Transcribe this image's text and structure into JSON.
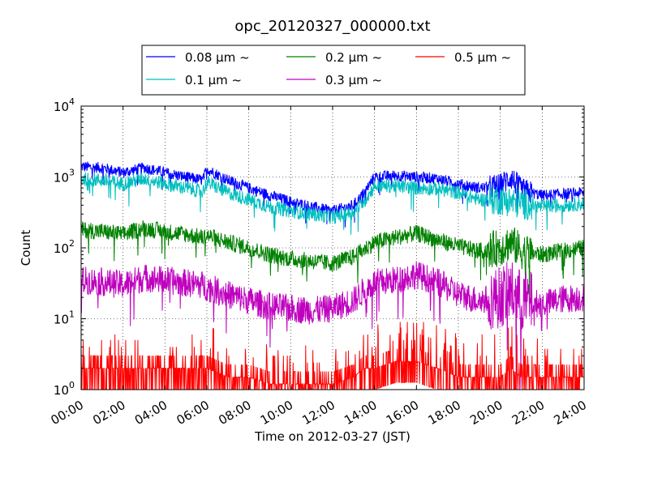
{
  "chart_data": {
    "type": "line",
    "title": "opc_20120327_000000.txt",
    "xlabel": "Time on 2012-03-27 (JST)",
    "ylabel": "Count",
    "yscale": "log",
    "ylim": [
      1,
      10000
    ],
    "xlim": [
      "00:00",
      "24:00"
    ],
    "grid": true,
    "legend_position": "top-center",
    "x_ticks": [
      "00:00",
      "02:00",
      "04:00",
      "06:00",
      "08:00",
      "10:00",
      "12:00",
      "14:00",
      "16:00",
      "18:00",
      "20:00",
      "22:00",
      "24:00"
    ],
    "y_ticks": [
      {
        "base": "10",
        "exp": "0"
      },
      {
        "base": "10",
        "exp": "1"
      },
      {
        "base": "10",
        "exp": "2"
      },
      {
        "base": "10",
        "exp": "3"
      },
      {
        "base": "10",
        "exp": "4"
      }
    ],
    "x_hours": [
      0,
      1,
      2,
      3,
      4,
      5,
      5.8,
      6,
      7,
      8,
      9,
      10,
      11,
      12,
      13,
      13.5,
      14,
      15,
      16,
      17,
      18,
      19,
      20,
      20.5,
      21,
      22,
      23,
      24
    ],
    "series": [
      {
        "name": "0.08 μm ~",
        "color": "#0000ff",
        "values": [
          1400,
          1350,
          1150,
          1350,
          1150,
          1000,
          900,
          1300,
          900,
          700,
          550,
          450,
          380,
          330,
          400,
          600,
          1000,
          1050,
          1000,
          950,
          800,
          700,
          750,
          1000,
          650,
          550,
          580,
          600
        ]
      },
      {
        "name": "0.1 μm ~",
        "color": "#00bfbf",
        "values": [
          950,
          900,
          800,
          950,
          800,
          700,
          620,
          850,
          600,
          480,
          380,
          330,
          300,
          270,
          320,
          450,
          750,
          750,
          700,
          680,
          600,
          480,
          480,
          450,
          420,
          380,
          400,
          420
        ]
      },
      {
        "name": "0.2 μm ~",
        "color": "#008000",
        "values": [
          180,
          170,
          155,
          190,
          170,
          155,
          140,
          150,
          120,
          100,
          80,
          70,
          65,
          60,
          75,
          95,
          120,
          140,
          160,
          130,
          105,
          90,
          100,
          120,
          90,
          80,
          90,
          100
        ]
      },
      {
        "name": "0.3 μm ~",
        "color": "#bf00bf",
        "values": [
          35,
          33,
          30,
          38,
          35,
          32,
          30,
          28,
          22,
          18,
          15,
          14,
          13,
          14,
          18,
          25,
          32,
          35,
          42,
          33,
          22,
          18,
          20,
          25,
          18,
          16,
          19,
          20
        ]
      },
      {
        "name": "0.5 μm ~",
        "color": "#ff0000",
        "values": [
          2,
          2,
          2,
          2,
          2,
          2,
          2,
          2,
          1.5,
          1.5,
          1.2,
          1.2,
          1.2,
          1.2,
          1.5,
          2,
          2,
          2.5,
          2.5,
          2,
          1.5,
          1.5,
          1.5,
          2,
          1.5,
          1.5,
          1.5,
          1.5
        ]
      }
    ]
  }
}
